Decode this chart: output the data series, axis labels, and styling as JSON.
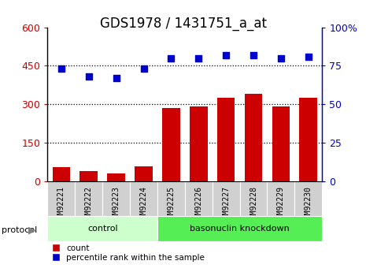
{
  "title": "GDS1978 / 1431751_a_at",
  "samples": [
    "GSM92221",
    "GSM92222",
    "GSM92223",
    "GSM92224",
    "GSM92225",
    "GSM92226",
    "GSM92227",
    "GSM92228",
    "GSM92229",
    "GSM92230"
  ],
  "bar_values": [
    55,
    38,
    30,
    58,
    285,
    292,
    325,
    340,
    292,
    325
  ],
  "scatter_values": [
    73,
    68,
    67,
    73,
    80,
    80,
    82,
    82,
    80,
    81
  ],
  "groups": [
    {
      "label": "control",
      "start": 0,
      "end": 4
    },
    {
      "label": "basonuclin knockdown",
      "start": 4,
      "end": 10
    }
  ],
  "protocol_label": "protocol",
  "left_ylim": [
    0,
    600
  ],
  "right_ylim": [
    0,
    100
  ],
  "left_yticks": [
    0,
    150,
    300,
    450,
    600
  ],
  "right_yticks": [
    0,
    25,
    50,
    75,
    100
  ],
  "right_yticklabels": [
    "0",
    "25",
    "50",
    "75",
    "100%"
  ],
  "bar_color": "#cc0000",
  "scatter_color": "#0000cc",
  "tick_label_color_left": "#cc0000",
  "tick_label_color_right": "#0000cc",
  "legend_bar_label": "count",
  "legend_scatter_label": "percentile rank within the sample",
  "group_colors": [
    "#ccffcc",
    "#55ee55"
  ],
  "sample_bg_color": "#d0d0d0",
  "title_fontsize": 12,
  "tick_fontsize": 9,
  "sample_fontsize": 7
}
